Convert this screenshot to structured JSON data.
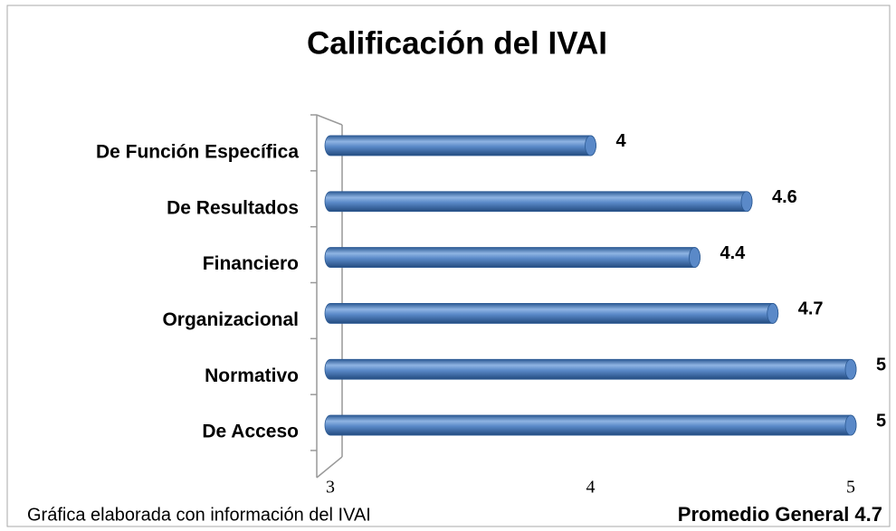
{
  "chart_data": {
    "type": "bar",
    "orientation": "horizontal",
    "title": "Calificación del IVAI",
    "categories": [
      "De Función Específica",
      "De Resultados",
      "Financiero",
      "Organizacional",
      "Normativo",
      "De Acceso"
    ],
    "values": [
      4,
      4.6,
      4.4,
      4.7,
      5,
      5
    ],
    "color": "#4f81bd",
    "xlim": [
      3,
      5
    ],
    "xticks": [
      3,
      4,
      5
    ],
    "annotations": [
      "Gráfica elaborada con información del IVAI",
      "Promedio General 4.7"
    ]
  }
}
